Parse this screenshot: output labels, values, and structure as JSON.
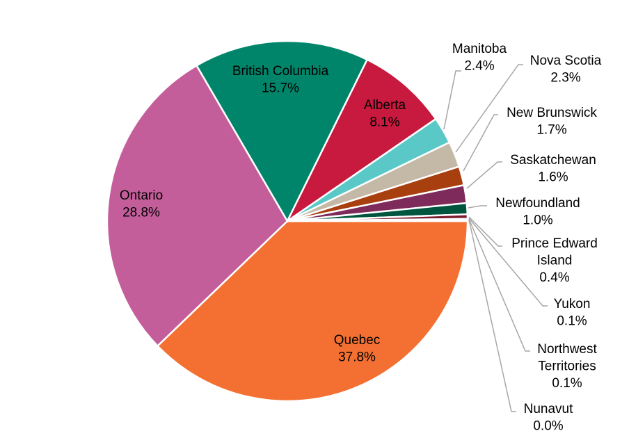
{
  "chart_data": {
    "type": "pie",
    "title": "",
    "start": "3 o'clock, clockwise",
    "slices": [
      {
        "label": "Quebec",
        "value": 37.8,
        "display": "37.8%",
        "color": "#F37032"
      },
      {
        "label": "Ontario",
        "value": 28.8,
        "display": "28.8%",
        "color": "#C45E9B"
      },
      {
        "label": "British Columbia",
        "value": 15.7,
        "display": "15.7%",
        "color": "#00856A"
      },
      {
        "label": "Alberta",
        "value": 8.1,
        "display": "8.1%",
        "color": "#C8193E"
      },
      {
        "label": "Manitoba",
        "value": 2.4,
        "display": "2.4%",
        "color": "#5BC8C8"
      },
      {
        "label": "Nova Scotia",
        "value": 2.3,
        "display": "2.3%",
        "color": "#C3B9A6"
      },
      {
        "label": "New Brunswick",
        "value": 1.7,
        "display": "1.7%",
        "color": "#A83F0F"
      },
      {
        "label": "Saskatchewan",
        "value": 1.6,
        "display": "1.6%",
        "color": "#7E2B5B"
      },
      {
        "label": "Newfoundland",
        "value": 1.0,
        "display": "1.0%",
        "color": "#00553F"
      },
      {
        "label": "Prince Edward Island",
        "value": 0.4,
        "display": "0.4%",
        "color": "#7A1A2E"
      },
      {
        "label": "Yukon",
        "value": 0.1,
        "display": "0.1%",
        "color": "#F2A900"
      },
      {
        "label": "Northwest Territories",
        "value": 0.1,
        "display": "0.1%",
        "color": "#1F4E79"
      },
      {
        "label": "Nunavut",
        "value": 0.0,
        "display": "0.0%",
        "color": "#888888"
      }
    ]
  }
}
